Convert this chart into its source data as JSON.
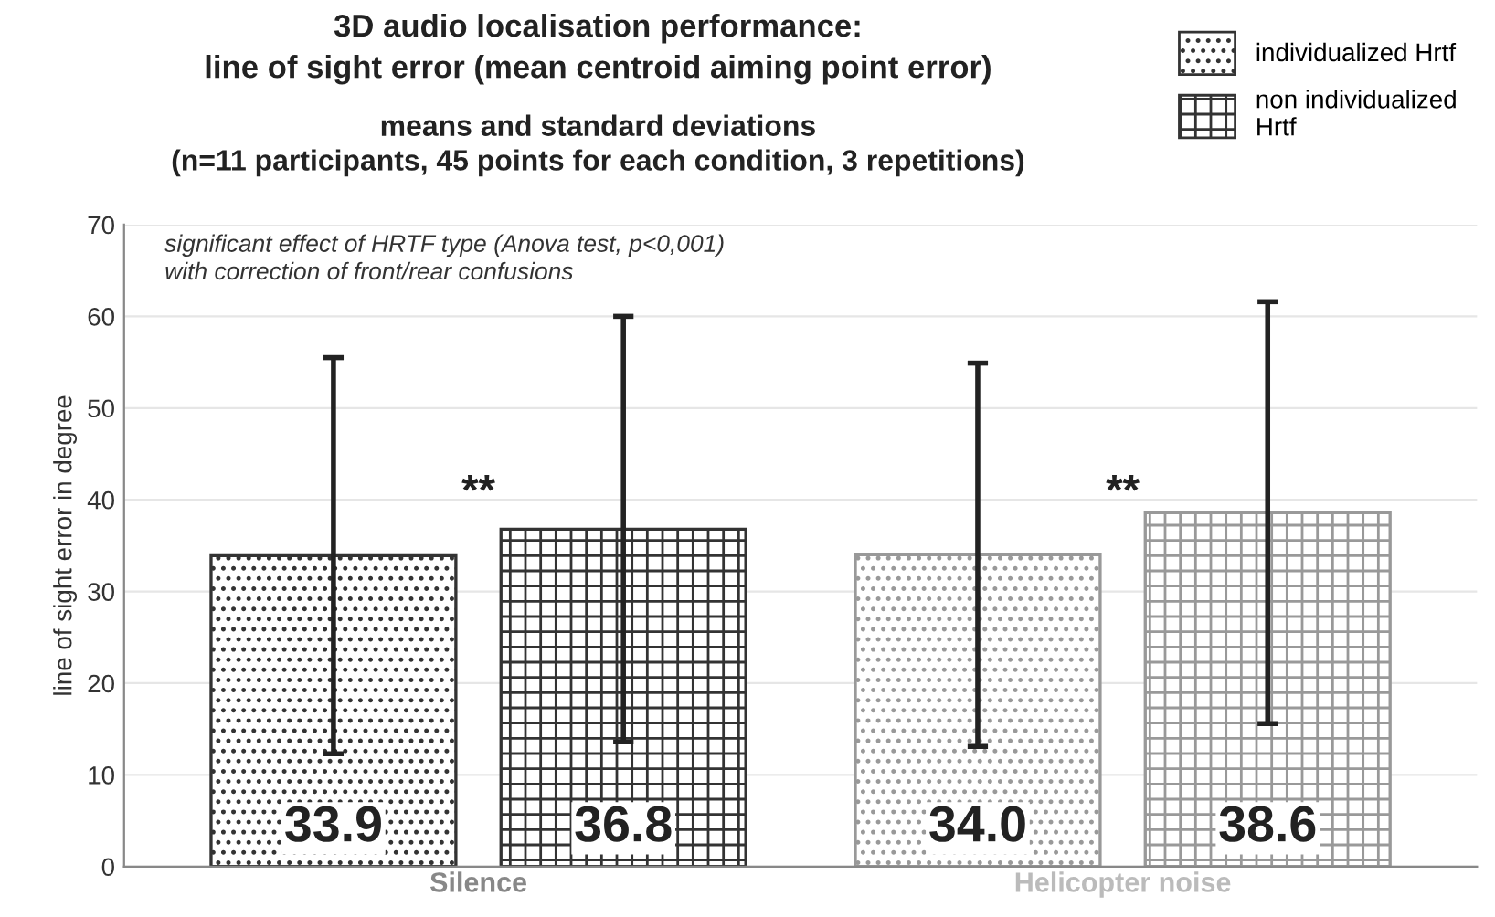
{
  "chart_data": {
    "type": "bar",
    "title": "3D audio localisation performance:\nline of sight error (mean centroid aiming point error)",
    "subtitle": "means and standard deviations\n(n=11 participants, 45 points for each condition, 3 repetitions)",
    "ylabel": "line of sight error in degree",
    "categories": [
      "Silence",
      "Helicopter noise"
    ],
    "series": [
      {
        "name": "individualized Hrtf",
        "colors": [
          "#333333",
          "#999999"
        ],
        "values": [
          33.9,
          34.0
        ],
        "value_labels": [
          "33.9",
          "34.0"
        ],
        "errors": [
          21.6,
          20.9
        ]
      },
      {
        "name": "non individualized\nHrtf",
        "colors": [
          "#333333",
          "#999999"
        ],
        "values": [
          36.8,
          38.6
        ],
        "value_labels": [
          "36.8",
          "38.6"
        ],
        "errors": [
          23.2,
          23.0
        ]
      }
    ],
    "ylim": [
      0,
      70
    ],
    "yticks": [
      0,
      10,
      20,
      30,
      40,
      50,
      60,
      70
    ],
    "grid": "y",
    "legend": "top right",
    "annotations": [
      "significant effect of HRTF type (Anova test, p<0,001)\nwith correction of front/rear confusions",
      "**",
      "**"
    ]
  }
}
